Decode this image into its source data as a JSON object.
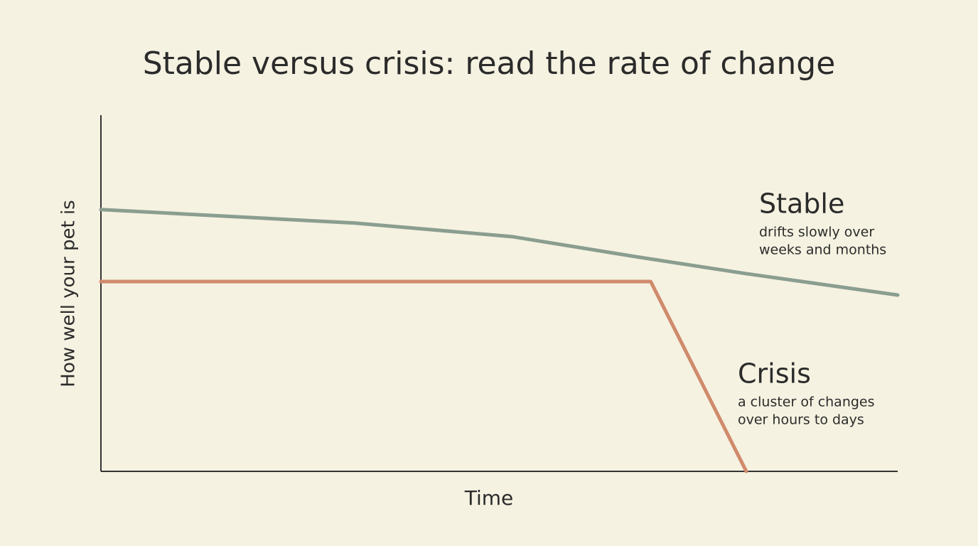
{
  "chart_data": {
    "type": "line",
    "title": "Stable versus crisis: read the rate of change",
    "x_label": "Time",
    "y_label": "How well your pet is",
    "xlim": [
      0,
      100
    ],
    "ylim": [
      0,
      100
    ],
    "series": [
      {
        "name": "Stable",
        "color": "#8a9e90",
        "description": [
          "drifts slowly over",
          "weeks and months"
        ],
        "x": [
          0,
          31.9,
          51.6,
          67.6,
          81,
          100
        ],
        "values": [
          73.5,
          69.7,
          65.9,
          60.1,
          55.5,
          49.5
        ]
      },
      {
        "name": "Crisis",
        "color": "#d08a6c",
        "description": [
          "a cluster of changes",
          "over hours to days"
        ],
        "x": [
          0,
          69,
          81
        ],
        "values": [
          53.3,
          53.3,
          0
        ]
      }
    ]
  }
}
